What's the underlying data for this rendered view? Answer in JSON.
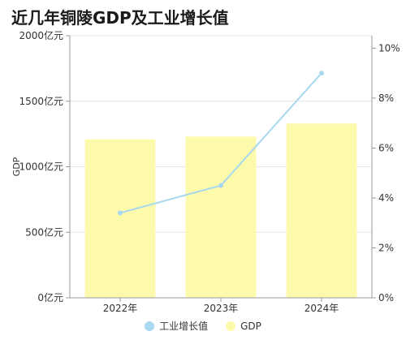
{
  "chart_data": {
    "type": "bar",
    "title": "近几年铜陵GDP及工业增长值",
    "categories": [
      "2022年",
      "2023年",
      "2024年"
    ],
    "ylabel": "GDP",
    "ylim": [
      0,
      2000
    ],
    "yticks": [
      "0亿元",
      "500亿元",
      "1000亿元",
      "1500亿元",
      "2000亿元"
    ],
    "y2lim": [
      0,
      10.5
    ],
    "y2ticks": [
      "0%",
      "2%",
      "4%",
      "6%",
      "8%",
      "10%"
    ],
    "grid": true,
    "legend_position": "bottom",
    "series": [
      {
        "name": "GDP",
        "type": "bar",
        "axis": "left",
        "color": "#fdfbab",
        "values": [
          1210,
          1230,
          1330
        ]
      },
      {
        "name": "工业增长值",
        "type": "line",
        "axis": "right",
        "color": "#a8d8f0",
        "values": [
          3.4,
          4.5,
          9.0
        ]
      }
    ]
  }
}
